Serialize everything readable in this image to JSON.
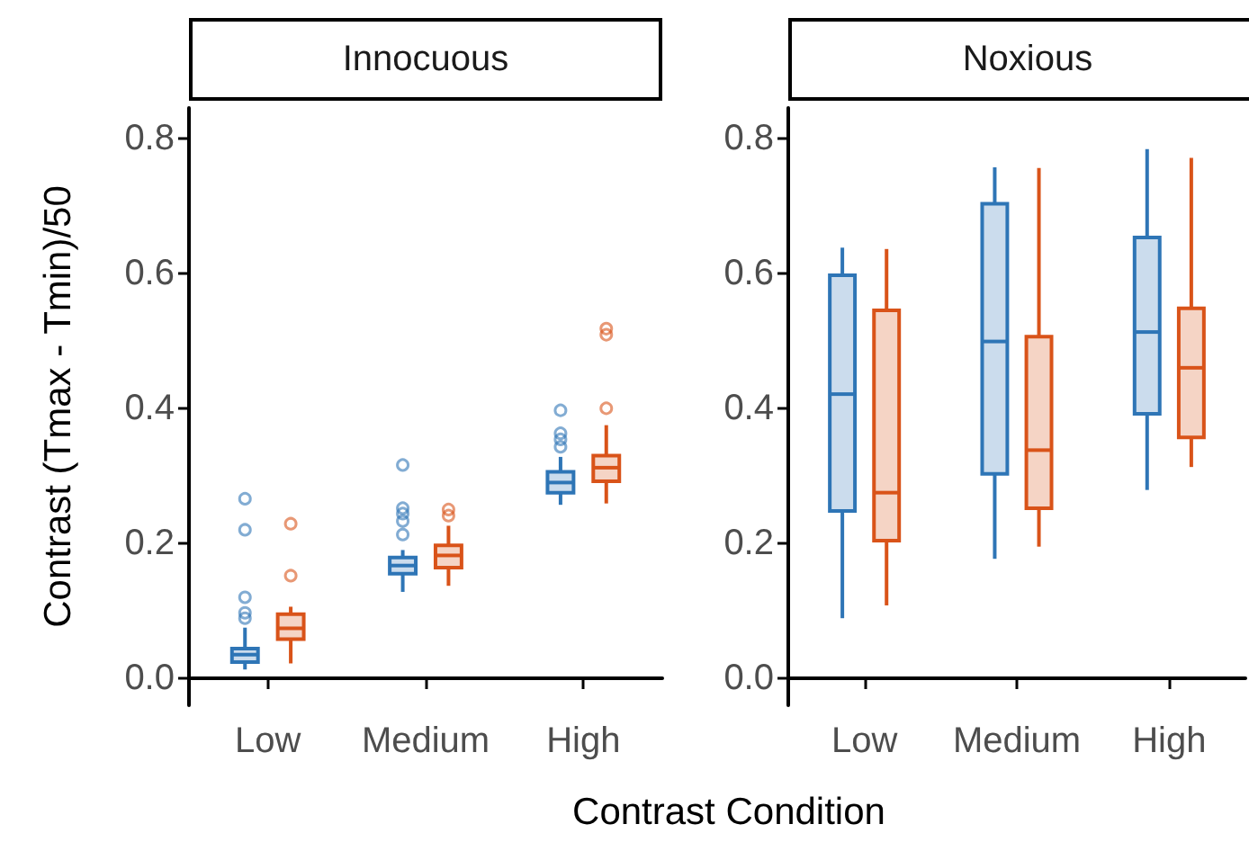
{
  "chart_data": [
    {
      "type": "box",
      "title": "Innocuous",
      "ylabel": "Contrast (Tmax - Tmin)/50",
      "xlabel": "Contrast Condition",
      "categories": [
        "Low",
        "Medium",
        "High"
      ],
      "ylim": [
        -0.04,
        0.845
      ],
      "yticks": [
        {
          "value": 0,
          "label": "0.0"
        },
        0.2,
        0.4,
        0.6,
        0.8
      ],
      "grid": false,
      "series": [
        {
          "color": "#2e75b6",
          "boxes": [
            {
              "low": 0.013,
              "q1": 0.024,
              "median": 0.035,
              "q3": 0.044,
              "high": 0.075,
              "outliers": [
                0.266,
                0.22,
                0.12,
                0.097,
                0.089
              ]
            },
            {
              "low": 0.128,
              "q1": 0.155,
              "median": 0.167,
              "q3": 0.179,
              "high": 0.19,
              "outliers": [
                0.213,
                0.233,
                0.244,
                0.252,
                0.316
              ]
            },
            {
              "low": 0.257,
              "q1": 0.275,
              "median": 0.29,
              "q3": 0.306,
              "high": 0.328,
              "outliers": [
                0.343,
                0.354,
                0.363,
                0.397
              ]
            }
          ]
        },
        {
          "color": "#d95319",
          "boxes": [
            {
              "low": 0.022,
              "q1": 0.058,
              "median": 0.074,
              "q3": 0.095,
              "high": 0.106,
              "outliers": [
                0.152,
                0.229
              ]
            },
            {
              "low": 0.137,
              "q1": 0.164,
              "median": 0.182,
              "q3": 0.197,
              "high": 0.226,
              "outliers": [
                0.241,
                0.25
              ]
            },
            {
              "low": 0.259,
              "q1": 0.292,
              "median": 0.312,
              "q3": 0.33,
              "high": 0.375,
              "outliers": [
                0.4,
                0.509,
                0.518
              ]
            }
          ]
        }
      ]
    },
    {
      "type": "box",
      "title": "Noxious",
      "categories": [
        "Low",
        "Medium",
        "High"
      ],
      "ylim": [
        -0.04,
        0.845
      ],
      "yticks": [
        {
          "value": 0,
          "label": "0.0"
        },
        0.2,
        0.4,
        0.6,
        0.8
      ],
      "grid": false,
      "series": [
        {
          "color": "#2e75b6",
          "boxes": [
            {
              "low": 0.089,
              "q1": 0.248,
              "median": 0.421,
              "q3": 0.597,
              "high": 0.638
            },
            {
              "low": 0.177,
              "q1": 0.303,
              "median": 0.499,
              "q3": 0.703,
              "high": 0.757
            },
            {
              "low": 0.279,
              "q1": 0.392,
              "median": 0.513,
              "q3": 0.653,
              "high": 0.784
            }
          ]
        },
        {
          "color": "#d95319",
          "boxes": [
            {
              "low": 0.108,
              "q1": 0.204,
              "median": 0.275,
              "q3": 0.545,
              "high": 0.636
            },
            {
              "low": 0.195,
              "q1": 0.252,
              "median": 0.338,
              "q3": 0.506,
              "high": 0.756
            },
            {
              "low": 0.313,
              "q1": 0.357,
              "median": 0.46,
              "q3": 0.548,
              "high": 0.771
            }
          ]
        }
      ]
    }
  ]
}
